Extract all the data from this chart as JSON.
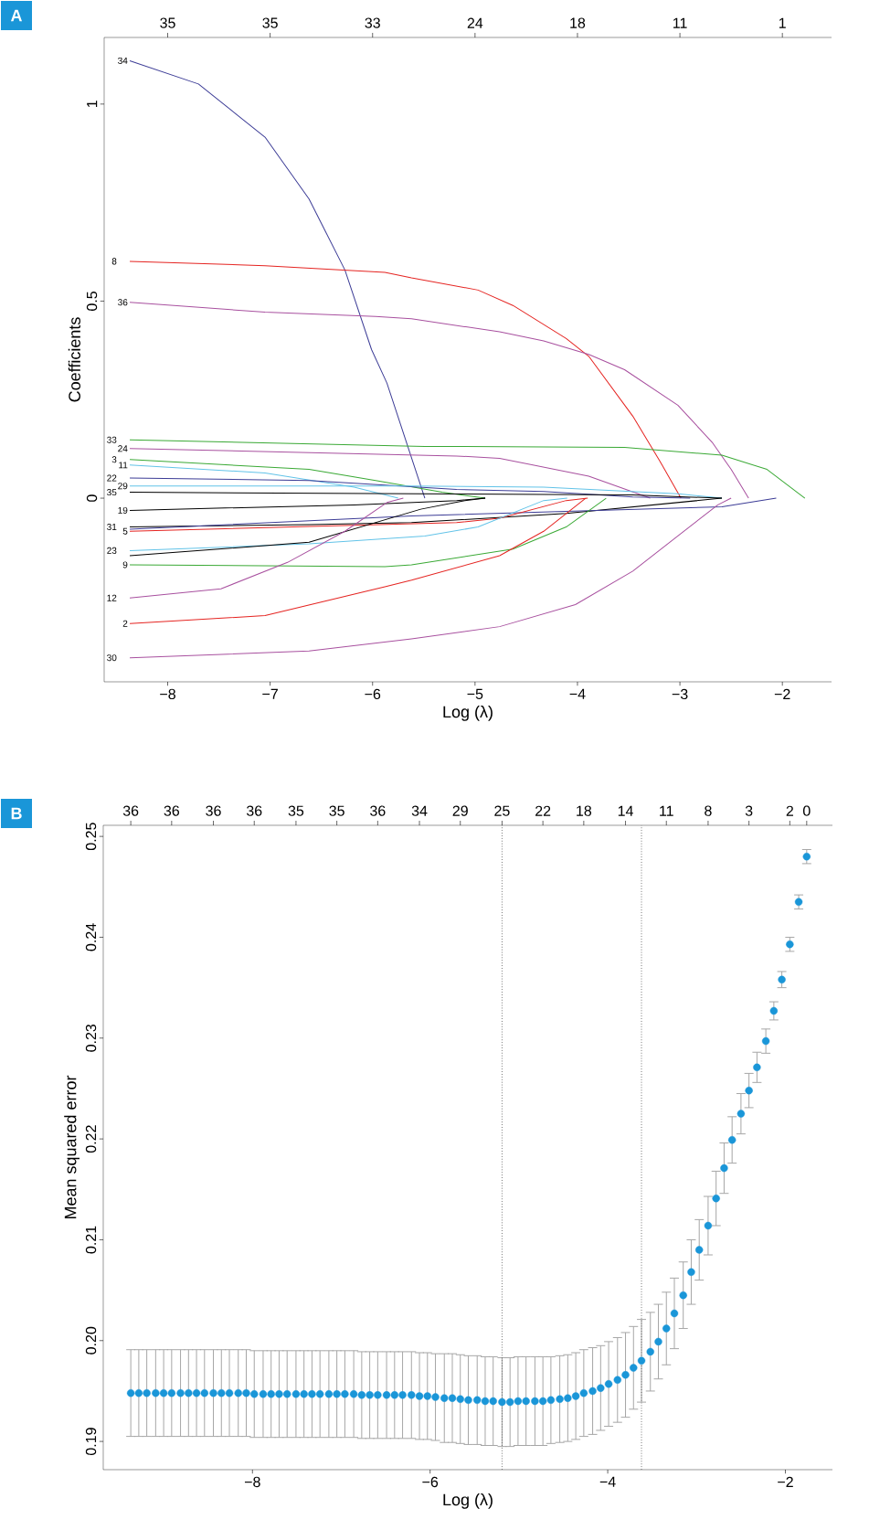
{
  "chart_data": [
    {
      "type": "line",
      "title": "A",
      "xlabel": "Log (λ)",
      "ylabel": "Coefficients",
      "xlim": [
        -8.62,
        -1.52
      ],
      "ylim": [
        -0.466,
        1.169
      ],
      "xticks": [
        {
          "value": -8,
          "label": "−8"
        },
        {
          "value": -7,
          "label": "−7"
        },
        {
          "value": -6,
          "label": "−6"
        },
        {
          "value": -5,
          "label": "−5"
        },
        {
          "value": -4,
          "label": "−4"
        },
        {
          "value": -3,
          "label": "−3"
        },
        {
          "value": -2,
          "label": "−2"
        }
      ],
      "annotations": [
        "35",
        "35",
        "33",
        "24",
        "18",
        "11",
        "1"
      ],
      "yticks": [
        0,
        0.5,
        1
      ],
      "marker": "none",
      "line_style": "solid",
      "series": [
        {
          "name": "34",
          "color": "#3c3c96",
          "x": [
            -8.37,
            -7.7,
            -7.05,
            -6.62,
            -6.27,
            -6.01,
            -5.86,
            -5.49
          ],
          "values": [
            1.11,
            1.051,
            0.916,
            0.759,
            0.579,
            0.377,
            0.292,
            0
          ]
        },
        {
          "name": "8",
          "color": "#e52421",
          "x": [
            -8.37,
            -7.05,
            -5.88,
            -5.62,
            -4.97,
            -4.63,
            -4.11,
            -3.89,
            -3.46,
            -3.2,
            -2.99
          ],
          "values": [
            0.601,
            0.59,
            0.573,
            0.559,
            0.528,
            0.489,
            0.405,
            0.36,
            0.208,
            0.096,
            0
          ]
        },
        {
          "name": "36",
          "color": "#a8509f",
          "x": [
            -8.37,
            -7.05,
            -5.97,
            -5.62,
            -4.76,
            -4.33,
            -3.89,
            -3.54,
            -3.02,
            -2.68,
            -2.5,
            -2.33
          ],
          "values": [
            0.497,
            0.472,
            0.461,
            0.455,
            0.422,
            0.399,
            0.365,
            0.326,
            0.236,
            0.14,
            0.073,
            0
          ]
        },
        {
          "name": "33",
          "color": "#3aa935",
          "x": [
            -8.37,
            -5.49,
            -5.19,
            -3.54,
            -2.59,
            -2.15,
            -1.78
          ],
          "values": [
            0.148,
            0.131,
            0.131,
            0.129,
            0.109,
            0.073,
            0
          ]
        },
        {
          "name": "24",
          "color": "#a8509f",
          "x": [
            -8.37,
            -5.18,
            -4.76,
            -3.89,
            -3.29
          ],
          "values": [
            0.126,
            0.107,
            0.101,
            0.056,
            0
          ]
        },
        {
          "name": "3",
          "color": "#3aa935",
          "x": [
            -8.37,
            -6.62,
            -5.97,
            -5.32,
            -4.9
          ],
          "values": [
            0.098,
            0.073,
            0.045,
            0.015,
            0
          ]
        },
        {
          "name": "11",
          "color": "#62c3e8",
          "x": [
            -8.37,
            -7.05,
            -6.18,
            -5.75
          ],
          "values": [
            0.084,
            0.064,
            0.028,
            0
          ]
        },
        {
          "name": "22",
          "color": "#3c3c96",
          "x": [
            -8.37,
            -6.62,
            -5.18,
            -4.33,
            -3.46,
            -2.9
          ],
          "values": [
            0.051,
            0.045,
            0.022,
            0.017,
            0.003,
            0
          ]
        },
        {
          "name": "29",
          "color": "#62c3e8",
          "x": [
            -8.37,
            -5.62,
            -4.33,
            -3.02,
            -2.59
          ],
          "values": [
            0.031,
            0.031,
            0.028,
            0.011,
            0
          ]
        },
        {
          "name": "35",
          "color": "#000000",
          "x": [
            -8.37,
            -3.46,
            -2.59
          ],
          "values": [
            0.015,
            0.008,
            0
          ]
        },
        {
          "name": "19",
          "color": "#000000",
          "x": [
            -8.37,
            -6.18,
            -5.18,
            -4.9
          ],
          "values": [
            -0.031,
            -0.017,
            -0.006,
            0
          ]
        },
        {
          "name": "31",
          "color": "#000000",
          "x": [
            -8.37,
            -6.62,
            -5.62,
            -4.11,
            -2.59
          ],
          "values": [
            -0.073,
            -0.067,
            -0.062,
            -0.039,
            0
          ]
        },
        {
          "color": "#3c3c96",
          "x": [
            -8.37,
            -5.62,
            -2.59,
            -2.06
          ],
          "values": [
            -0.079,
            -0.045,
            -0.022,
            0
          ]
        },
        {
          "name": "5",
          "color": "#e52421",
          "x": [
            -8.37,
            -5.18,
            -4.76,
            -4.11,
            -3.9
          ],
          "values": [
            -0.084,
            -0.062,
            -0.051,
            -0.006,
            0
          ]
        },
        {
          "name": "23",
          "color": "#62c3e8",
          "x": [
            -8.37,
            -6.62,
            -5.49,
            -4.97,
            -4.33,
            -4.1
          ],
          "values": [
            -0.133,
            -0.116,
            -0.096,
            -0.073,
            -0.006,
            0
          ]
        },
        {
          "color": "#000000",
          "x": [
            -8.37,
            -6.62,
            -5.53,
            -5.1,
            -4.9
          ],
          "values": [
            -0.146,
            -0.112,
            -0.028,
            -0.006,
            0
          ]
        },
        {
          "name": "9",
          "color": "#3aa935",
          "x": [
            -8.37,
            -5.88,
            -5.62,
            -4.63,
            -4.11,
            -3.72
          ],
          "values": [
            -0.169,
            -0.174,
            -0.169,
            -0.129,
            -0.073,
            0
          ]
        },
        {
          "name": "12",
          "color": "#a8509f",
          "x": [
            -8.37,
            -7.48,
            -6.83,
            -6.27,
            -5.86,
            -5.7
          ],
          "values": [
            -0.253,
            -0.23,
            -0.163,
            -0.084,
            -0.011,
            0
          ]
        },
        {
          "name": "2",
          "color": "#e52421",
          "x": [
            -8.37,
            -7.05,
            -5.88,
            -5.62,
            -4.76,
            -4.33,
            -3.92
          ],
          "values": [
            -0.318,
            -0.298,
            -0.225,
            -0.208,
            -0.146,
            -0.084,
            0
          ]
        },
        {
          "name": "30",
          "color": "#a8509f",
          "x": [
            -8.37,
            -6.62,
            -5.62,
            -4.76,
            -4.02,
            -3.46,
            -3.02,
            -2.63,
            -2.5
          ],
          "values": [
            -0.405,
            -0.388,
            -0.357,
            -0.326,
            -0.27,
            -0.185,
            -0.096,
            -0.017,
            0
          ]
        }
      ]
    },
    {
      "type": "scatter",
      "title": "B",
      "xlabel": "Log (λ)",
      "ylabel": "Mean squared error",
      "xlim": [
        -9.68,
        -1.47
      ],
      "ylim": [
        0.1872,
        0.2511
      ],
      "xticks": [
        {
          "value": -8,
          "label": "−8"
        },
        {
          "value": -6,
          "label": "−6"
        },
        {
          "value": -4,
          "label": "−4"
        },
        {
          "value": -2,
          "label": "−2"
        }
      ],
      "annotations": [
        "36",
        "36",
        "36",
        "36",
        "35",
        "35",
        "36",
        "34",
        "29",
        "25",
        "22",
        "18",
        "14",
        "11",
        "8",
        "3",
        "2",
        "0"
      ],
      "yticks": [
        0.19,
        {
          "value": 0.2,
          "label": "0.20"
        },
        0.21,
        0.22,
        0.23,
        0.24,
        0.25
      ],
      "marker": "circle",
      "color": "#1a96d8",
      "x": [
        -9.37,
        -9.28,
        -9.19,
        -9.09,
        -9.0,
        -8.91,
        -8.81,
        -8.72,
        -8.63,
        -8.54,
        -8.44,
        -8.35,
        -8.26,
        -8.16,
        -8.07,
        -7.98,
        -7.88,
        -7.79,
        -7.7,
        -7.61,
        -7.51,
        -7.42,
        -7.33,
        -7.24,
        -7.14,
        -7.05,
        -6.96,
        -6.86,
        -6.77,
        -6.68,
        -6.59,
        -6.49,
        -6.4,
        -6.31,
        -6.21,
        -6.12,
        -6.03,
        -5.94,
        -5.84,
        -5.75,
        -5.66,
        -5.57,
        -5.47,
        -5.38,
        -5.29,
        -5.19,
        -5.1,
        -5.01,
        -4.92,
        -4.82,
        -4.73,
        -4.64,
        -4.54,
        -4.45,
        -4.36,
        -4.27,
        -4.17,
        -4.08,
        -3.99,
        -3.89,
        -3.8,
        -3.71,
        -3.62,
        -3.52,
        -3.43,
        -3.34,
        -3.25,
        -3.15,
        -3.06,
        -2.97,
        -2.87,
        -2.78,
        -2.69,
        -2.6,
        -2.5,
        -2.41,
        -2.32,
        -2.22,
        -2.13,
        -2.04,
        -1.95,
        -1.85,
        -1.76
      ],
      "values": [
        0.1948,
        0.1948,
        0.1948,
        0.1948,
        0.1948,
        0.1948,
        0.1948,
        0.1948,
        0.1948,
        0.1948,
        0.1948,
        0.1948,
        0.1948,
        0.1948,
        0.1948,
        0.1947,
        0.1947,
        0.1947,
        0.1947,
        0.1947,
        0.1947,
        0.1947,
        0.1947,
        0.1947,
        0.1947,
        0.1947,
        0.1947,
        0.1947,
        0.1946,
        0.1946,
        0.1946,
        0.1946,
        0.1946,
        0.1946,
        0.1946,
        0.1945,
        0.1945,
        0.1944,
        0.1943,
        0.1943,
        0.1942,
        0.1941,
        0.1941,
        0.194,
        0.194,
        0.1939,
        0.1939,
        0.194,
        0.194,
        0.194,
        0.194,
        0.1941,
        0.1942,
        0.1943,
        0.1945,
        0.1948,
        0.195,
        0.1953,
        0.1957,
        0.1961,
        0.1966,
        0.1973,
        0.198,
        0.1989,
        0.1999,
        0.2012,
        0.2027,
        0.2045,
        0.2068,
        0.209,
        0.2114,
        0.2141,
        0.2171,
        0.2199,
        0.2225,
        0.2248,
        0.2271,
        0.2297,
        0.2327,
        0.2358,
        0.2393,
        0.2435,
        0.248
      ],
      "errors": [
        0.0043,
        0.0043,
        0.0043,
        0.0043,
        0.0043,
        0.0043,
        0.0043,
        0.0043,
        0.0043,
        0.0043,
        0.0043,
        0.0043,
        0.0043,
        0.0043,
        0.0043,
        0.0043,
        0.0043,
        0.0043,
        0.0043,
        0.0043,
        0.0043,
        0.0043,
        0.0043,
        0.0043,
        0.0043,
        0.0043,
        0.0043,
        0.0043,
        0.0043,
        0.0043,
        0.0043,
        0.0043,
        0.0043,
        0.0043,
        0.0043,
        0.0043,
        0.0043,
        0.0043,
        0.0044,
        0.0044,
        0.0044,
        0.0044,
        0.0044,
        0.0044,
        0.0044,
        0.0044,
        0.0044,
        0.0044,
        0.0044,
        0.0044,
        0.0044,
        0.0043,
        0.0043,
        0.0043,
        0.0043,
        0.0043,
        0.0043,
        0.0042,
        0.0042,
        0.0042,
        0.0042,
        0.0041,
        0.0041,
        0.0039,
        0.0037,
        0.0036,
        0.0035,
        0.0033,
        0.0032,
        0.003,
        0.0029,
        0.0027,
        0.0025,
        0.0023,
        0.002,
        0.0017,
        0.0015,
        0.0012,
        0.0009,
        0.0008,
        0.0007,
        0.0007,
        0.0007
      ],
      "ref_lines": [
        {
          "axis": "x",
          "value": -5.19,
          "color": "#555555",
          "line_style": "dotted"
        },
        {
          "axis": "x",
          "value": -3.62,
          "color": "#555555",
          "line_style": "dotted"
        }
      ]
    }
  ]
}
